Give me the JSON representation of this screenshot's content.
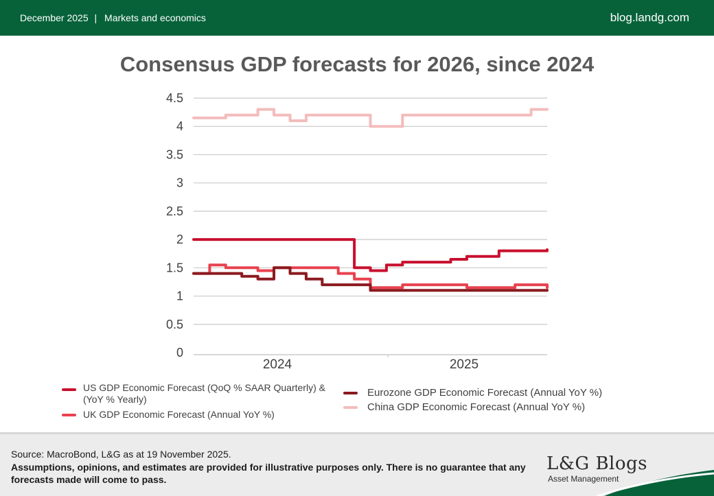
{
  "header": {
    "date": "December 2025",
    "separator": "|",
    "category": "Markets and economics",
    "site": "blog.landg.com"
  },
  "colors": {
    "brand_green": "#07623a",
    "us": "#c8102e",
    "uk": "#e8424f",
    "eurozone": "#8b1a1f",
    "china": "#f4bcbc"
  },
  "chart_data": {
    "type": "line",
    "title": "Consensus GDP forecasts for 2026, since 2024",
    "xlabel": "",
    "ylabel": "",
    "ylim": [
      0,
      4.5
    ],
    "yticks": [
      "0",
      "0.5",
      "1",
      "1.5",
      "2",
      "2.5",
      "3",
      "3.5",
      "4",
      "4.5"
    ],
    "xticks": [
      "2024",
      "2025"
    ],
    "x_range": [
      "2024-01",
      "2025-11"
    ],
    "grid": true,
    "legend_position": "bottom",
    "series": [
      {
        "name": "US GDP Economic Forecast (QoQ % SAAR Quarterly) & (YoY % Yearly)",
        "color": "#c8102e",
        "points": [
          [
            "2024-01",
            2.0
          ],
          [
            "2024-04",
            2.0
          ],
          [
            "2024-07",
            2.0
          ],
          [
            "2024-09",
            2.0
          ],
          [
            "2024-10",
            2.0
          ],
          [
            "2024-11",
            1.9
          ],
          [
            "2024-11",
            1.5
          ],
          [
            "2024-12",
            1.45
          ],
          [
            "2025-01",
            1.55
          ],
          [
            "2025-02",
            1.6
          ],
          [
            "2025-04",
            1.6
          ],
          [
            "2025-05",
            1.65
          ],
          [
            "2025-06",
            1.7
          ],
          [
            "2025-07",
            1.7
          ],
          [
            "2025-08",
            1.8
          ],
          [
            "2025-10",
            1.8
          ],
          [
            "2025-11",
            1.82
          ]
        ]
      },
      {
        "name": "UK GDP Economic Forecast (Annual YoY %)",
        "color": "#e8424f",
        "points": [
          [
            "2024-01",
            1.4
          ],
          [
            "2024-02",
            1.55
          ],
          [
            "2024-03",
            1.5
          ],
          [
            "2024-04",
            1.5
          ],
          [
            "2024-05",
            1.45
          ],
          [
            "2024-06",
            1.5
          ],
          [
            "2024-08",
            1.5
          ],
          [
            "2024-09",
            1.5
          ],
          [
            "2024-10",
            1.4
          ],
          [
            "2024-11",
            1.3
          ],
          [
            "2024-12",
            1.15
          ],
          [
            "2025-01",
            1.15
          ],
          [
            "2025-02",
            1.2
          ],
          [
            "2025-04",
            1.2
          ],
          [
            "2025-06",
            1.15
          ],
          [
            "2025-08",
            1.15
          ],
          [
            "2025-09",
            1.2
          ],
          [
            "2025-11",
            1.15
          ]
        ]
      },
      {
        "name": "Eurozone GDP Economic Forecast (Annual YoY %)",
        "color": "#8b1a1f",
        "points": [
          [
            "2024-01",
            1.4
          ],
          [
            "2024-02",
            1.4
          ],
          [
            "2024-03",
            1.4
          ],
          [
            "2024-04",
            1.35
          ],
          [
            "2024-05",
            1.3
          ],
          [
            "2024-06",
            1.5
          ],
          [
            "2024-07",
            1.4
          ],
          [
            "2024-08",
            1.3
          ],
          [
            "2024-09",
            1.2
          ],
          [
            "2024-10",
            1.2
          ],
          [
            "2024-11",
            1.2
          ],
          [
            "2024-12",
            1.1
          ],
          [
            "2025-01",
            1.1
          ],
          [
            "2025-03",
            1.1
          ],
          [
            "2025-06",
            1.1
          ],
          [
            "2025-09",
            1.1
          ],
          [
            "2025-11",
            1.1
          ]
        ]
      },
      {
        "name": "China GDP Economic Forecast (Annual YoY %)",
        "color": "#f4bcbc",
        "points": [
          [
            "2024-01",
            4.15
          ],
          [
            "2024-02",
            4.15
          ],
          [
            "2024-03",
            4.2
          ],
          [
            "2024-04",
            4.2
          ],
          [
            "2024-05",
            4.3
          ],
          [
            "2024-06",
            4.2
          ],
          [
            "2024-07",
            4.1
          ],
          [
            "2024-08",
            4.2
          ],
          [
            "2024-10",
            4.2
          ],
          [
            "2024-11",
            4.2
          ],
          [
            "2024-12",
            4.0
          ],
          [
            "2025-01",
            4.0
          ],
          [
            "2025-02",
            4.2
          ],
          [
            "2025-06",
            4.2
          ],
          [
            "2025-09",
            4.2
          ],
          [
            "2025-10",
            4.3
          ],
          [
            "2025-11",
            4.3
          ]
        ]
      }
    ]
  },
  "footer": {
    "source": "Source: MacroBond, L&G as at 19 November 2025.",
    "disclaimer": "Assumptions, opinions, and estimates are provided for illustrative purposes only. There is no guarantee that any forecasts made will come to pass.",
    "brand": "L&G Blogs",
    "brand_sub": "Asset Management"
  }
}
